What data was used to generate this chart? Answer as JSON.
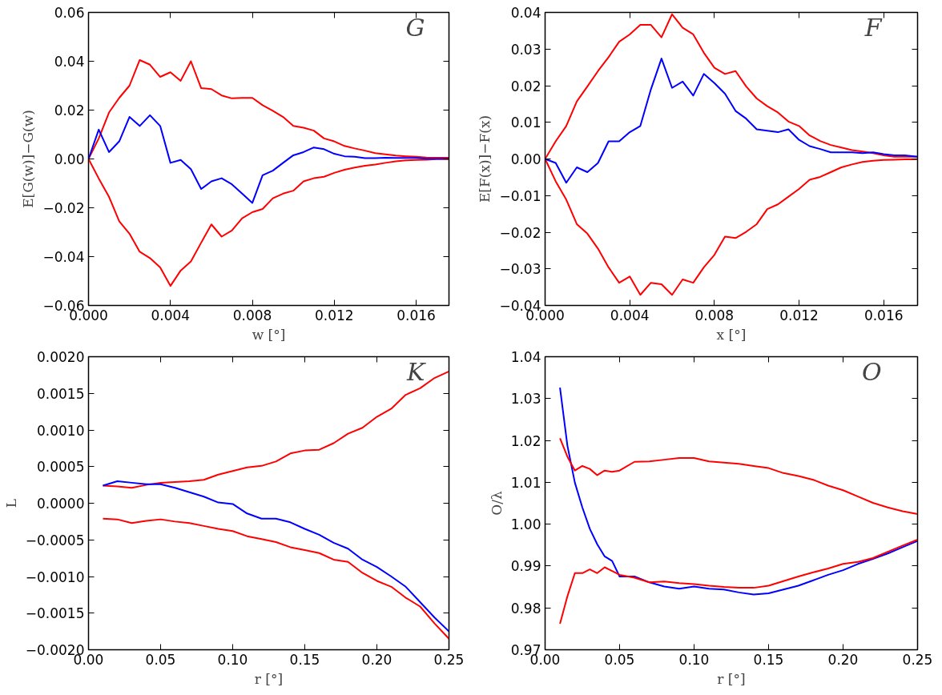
{
  "chart_data": [
    {
      "type": "line",
      "ylabel": "E[G(w)]−G(w)",
      "xlabel": "w [°]",
      "annotations": [
        "G"
      ],
      "line_style": "solid",
      "grid": false,
      "x": [
        0,
        0.0005,
        0.001,
        0.0015,
        0.002,
        0.0025,
        0.003,
        0.0035,
        0.004,
        0.0045,
        0.005,
        0.0055,
        0.006,
        0.0065,
        0.007,
        0.0075,
        0.008,
        0.0085,
        0.009,
        0.0095,
        0.01,
        0.0105,
        0.011,
        0.0115,
        0.012,
        0.0125,
        0.013,
        0.0135,
        0.014,
        0.0145,
        0.015,
        0.0155,
        0.016,
        0.0165,
        0.017,
        0.0176
      ],
      "xlim": [
        0,
        0.0176
      ],
      "xticks": [
        {
          "value": 0,
          "label": "0.000"
        },
        {
          "value": 0.004,
          "label": "0.004"
        },
        {
          "value": 0.008,
          "label": "0.008"
        },
        {
          "value": 0.012,
          "label": "0.012"
        },
        {
          "value": 0.016,
          "label": "0.016"
        }
      ],
      "ylim": [
        -0.06,
        0.06
      ],
      "yticks": [
        {
          "value": -0.06,
          "label": "−0.06"
        },
        {
          "value": -0.04,
          "label": "−0.04"
        },
        {
          "value": -0.02,
          "label": "−0.02"
        },
        {
          "value": 0,
          "label": "0.00"
        },
        {
          "value": 0.02,
          "label": "0.02"
        },
        {
          "value": 0.04,
          "label": "0.04"
        },
        {
          "value": 0.06,
          "label": "0.06"
        }
      ],
      "series": [
        {
          "color": "#ff0000",
          "values": [
            0,
            0.0084,
            0.019,
            0.025,
            0.03,
            0.0405,
            0.0386,
            0.0336,
            0.0355,
            0.032,
            0.04,
            0.029,
            0.0286,
            0.026,
            0.0248,
            0.025,
            0.025,
            0.022,
            0.0197,
            0.0172,
            0.0135,
            0.0128,
            0.0116,
            0.0084,
            0.0072,
            0.0053,
            0.0043,
            0.0034,
            0.0024,
            0.0019,
            0.0014,
            0.0011,
            0.0009,
            0.0006,
            0.0005,
            0.0005
          ]
        },
        {
          "color": "#ff0000",
          "values": [
            0,
            -0.008,
            -0.0155,
            -0.0255,
            -0.0306,
            -0.038,
            -0.0406,
            -0.0444,
            -0.052,
            -0.0457,
            -0.042,
            -0.0343,
            -0.0268,
            -0.0318,
            -0.0293,
            -0.0243,
            -0.0218,
            -0.0205,
            -0.0161,
            -0.0142,
            -0.013,
            -0.0092,
            -0.0079,
            -0.0073,
            -0.0057,
            -0.0044,
            -0.0035,
            -0.0028,
            -0.0023,
            -0.0016,
            -0.001,
            -0.0006,
            -0.0004,
            -0.0003,
            -0.0001,
            -0.0001
          ]
        },
        {
          "color": "#0000ff",
          "values": [
            0,
            0.012,
            0.0028,
            0.0072,
            0.0172,
            0.0135,
            0.0179,
            0.0135,
            -0.0016,
            -0.0004,
            -0.0042,
            -0.0123,
            -0.0092,
            -0.0079,
            -0.0104,
            -0.0142,
            -0.018,
            -0.0067,
            -0.0048,
            -0.0016,
            0.0015,
            0.0028,
            0.0047,
            0.004,
            0.0021,
            0.0011,
            0.0009,
            0.0003,
            0.0003,
            0.0005,
            0.0004,
            0.0004,
            0.0004,
            0.0001,
            0.0001,
            0.0001
          ]
        }
      ]
    },
    {
      "type": "line",
      "ylabel": "E[F(x)]−F(x)",
      "xlabel": "x [°]",
      "annotations": [
        "F"
      ],
      "line_style": "solid",
      "grid": false,
      "x": [
        0,
        0.0005,
        0.001,
        0.0015,
        0.002,
        0.0025,
        0.003,
        0.0035,
        0.004,
        0.0045,
        0.005,
        0.0055,
        0.006,
        0.0065,
        0.007,
        0.0075,
        0.008,
        0.0085,
        0.009,
        0.0095,
        0.01,
        0.0105,
        0.011,
        0.0115,
        0.012,
        0.0125,
        0.013,
        0.0135,
        0.014,
        0.0145,
        0.015,
        0.0155,
        0.016,
        0.0165,
        0.017,
        0.0176
      ],
      "xlim": [
        0,
        0.0176
      ],
      "xticks": [
        {
          "value": 0,
          "label": "0.000"
        },
        {
          "value": 0.004,
          "label": "0.004"
        },
        {
          "value": 0.008,
          "label": "0.008"
        },
        {
          "value": 0.012,
          "label": "0.012"
        },
        {
          "value": 0.016,
          "label": "0.016"
        }
      ],
      "ylim": [
        -0.04,
        0.04
      ],
      "yticks": [
        {
          "value": -0.04,
          "label": "−0.04"
        },
        {
          "value": -0.03,
          "label": "−0.03"
        },
        {
          "value": -0.02,
          "label": "−0.02"
        },
        {
          "value": -0.01,
          "label": "−0.01"
        },
        {
          "value": 0,
          "label": "0.00"
        },
        {
          "value": 0.01,
          "label": "0.01"
        },
        {
          "value": 0.02,
          "label": "0.02"
        },
        {
          "value": 0.03,
          "label": "0.03"
        },
        {
          "value": 0.04,
          "label": "0.04"
        }
      ],
      "series": [
        {
          "color": "#ff0000",
          "values": [
            0,
            0.0048,
            0.009,
            0.0157,
            0.0198,
            0.024,
            0.0278,
            0.032,
            0.034,
            0.0366,
            0.0366,
            0.0332,
            0.0395,
            0.0358,
            0.034,
            0.029,
            0.0249,
            0.0232,
            0.024,
            0.0198,
            0.0165,
            0.0144,
            0.0127,
            0.0102,
            0.009,
            0.0064,
            0.0049,
            0.0038,
            0.0031,
            0.0024,
            0.002,
            0.0016,
            0.001,
            0.0006,
            0.0006,
            0.0006
          ]
        },
        {
          "color": "#ff0000",
          "values": [
            0,
            -0.0061,
            -0.0111,
            -0.0178,
            -0.0204,
            -0.0245,
            -0.0296,
            -0.0338,
            -0.0321,
            -0.0371,
            -0.0338,
            -0.0342,
            -0.0371,
            -0.0329,
            -0.0338,
            -0.0296,
            -0.0262,
            -0.0212,
            -0.0216,
            -0.0199,
            -0.0178,
            -0.0137,
            -0.0124,
            -0.0103,
            -0.0082,
            -0.0057,
            -0.0049,
            -0.0036,
            -0.0023,
            -0.0015,
            -0.0008,
            -0.0005,
            -0.0003,
            -0.0002,
            -0.0001,
            -0.0001
          ]
        },
        {
          "color": "#0000ff",
          "values": [
            0,
            -0.0011,
            -0.0065,
            -0.0023,
            -0.0036,
            -0.0011,
            0.0048,
            0.0048,
            0.0073,
            0.009,
            0.019,
            0.0274,
            0.0194,
            0.0211,
            0.0173,
            0.0232,
            0.0207,
            0.0178,
            0.0131,
            0.011,
            0.0081,
            0.0077,
            0.0073,
            0.0081,
            0.0052,
            0.0035,
            0.0027,
            0.0018,
            0.0018,
            0.0018,
            0.0016,
            0.0018,
            0.0013,
            0.001,
            0.001,
            0.0006
          ]
        }
      ]
    },
    {
      "type": "line",
      "ylabel": "L",
      "xlabel": "r [°]",
      "annotations": [
        "K"
      ],
      "line_style": "solid",
      "grid": false,
      "x": [
        0.01,
        0.02,
        0.03,
        0.04,
        0.05,
        0.06,
        0.07,
        0.08,
        0.09,
        0.1,
        0.11,
        0.12,
        0.13,
        0.14,
        0.15,
        0.16,
        0.17,
        0.18,
        0.19,
        0.2,
        0.21,
        0.22,
        0.23,
        0.24,
        0.25
      ],
      "xlim": [
        0,
        0.25
      ],
      "xticks": [
        {
          "value": 0,
          "label": "0.00"
        },
        {
          "value": 0.05,
          "label": "0.05"
        },
        {
          "value": 0.1,
          "label": "0.10"
        },
        {
          "value": 0.15,
          "label": "0.15"
        },
        {
          "value": 0.2,
          "label": "0.20"
        },
        {
          "value": 0.25,
          "label": "0.25"
        }
      ],
      "ylim": [
        -0.002,
        0.002
      ],
      "yticks": [
        {
          "value": -0.002,
          "label": "−0.0020"
        },
        {
          "value": -0.0015,
          "label": "−0.0015"
        },
        {
          "value": -0.001,
          "label": "−0.0010"
        },
        {
          "value": -0.0005,
          "label": "−0.0005"
        },
        {
          "value": 0,
          "label": "0.0000"
        },
        {
          "value": 0.0005,
          "label": "0.0005"
        },
        {
          "value": 0.001,
          "label": "0.0010"
        },
        {
          "value": 0.0015,
          "label": "0.0015"
        },
        {
          "value": 0.002,
          "label": "0.0020"
        }
      ],
      "series": [
        {
          "color": "#ff0000",
          "values": [
            0.00024,
            0.00023,
            0.00021,
            0.00025,
            0.00028,
            0.00029,
            0.0003,
            0.00032,
            0.00039,
            0.00044,
            0.00049,
            0.00051,
            0.00057,
            0.00068,
            0.00072,
            0.00073,
            0.00082,
            0.00095,
            0.00103,
            0.00118,
            0.00129,
            0.00148,
            0.00157,
            0.00171,
            0.0018
          ]
        },
        {
          "color": "#0000ff",
          "values": [
            0.00024,
            0.0003,
            0.00028,
            0.00026,
            0.00026,
            0.00021,
            0.00015,
            9e-05,
            1e-05,
            -1e-05,
            -0.00014,
            -0.00021,
            -0.00021,
            -0.00026,
            -0.00035,
            -0.00043,
            -0.00054,
            -0.00062,
            -0.00077,
            -0.00087,
            -0.001,
            -0.00114,
            -0.00135,
            -0.00156,
            -0.00175
          ]
        },
        {
          "color": "#ff0000",
          "values": [
            -0.00021,
            -0.00022,
            -0.00027,
            -0.00024,
            -0.00022,
            -0.00025,
            -0.00027,
            -0.00031,
            -0.00035,
            -0.00038,
            -0.00045,
            -0.00049,
            -0.00053,
            -0.0006,
            -0.00064,
            -0.00068,
            -0.00077,
            -0.0008,
            -0.00095,
            -0.00106,
            -0.00114,
            -0.00129,
            -0.00141,
            -0.00164,
            -0.00185
          ]
        }
      ]
    },
    {
      "type": "line",
      "ylabel": "O/λ",
      "xlabel": "r [°]",
      "annotations": [
        "O"
      ],
      "line_style": "solid",
      "grid": false,
      "x": [
        0.01,
        0.015,
        0.02,
        0.025,
        0.03,
        0.035,
        0.04,
        0.045,
        0.05,
        0.06,
        0.07,
        0.08,
        0.09,
        0.1,
        0.11,
        0.12,
        0.13,
        0.14,
        0.15,
        0.16,
        0.17,
        0.18,
        0.19,
        0.2,
        0.21,
        0.22,
        0.23,
        0.24,
        0.25
      ],
      "xlim": [
        0,
        0.25
      ],
      "xticks": [
        {
          "value": 0,
          "label": "0.00"
        },
        {
          "value": 0.05,
          "label": "0.05"
        },
        {
          "value": 0.1,
          "label": "0.10"
        },
        {
          "value": 0.15,
          "label": "0.15"
        },
        {
          "value": 0.2,
          "label": "0.20"
        },
        {
          "value": 0.25,
          "label": "0.25"
        }
      ],
      "ylim": [
        0.97,
        1.04
      ],
      "yticks": [
        {
          "value": 0.97,
          "label": "0.97"
        },
        {
          "value": 0.98,
          "label": "0.98"
        },
        {
          "value": 0.99,
          "label": "0.99"
        },
        {
          "value": 1.0,
          "label": "1.00"
        },
        {
          "value": 1.01,
          "label": "1.01"
        },
        {
          "value": 1.02,
          "label": "1.02"
        },
        {
          "value": 1.03,
          "label": "1.03"
        },
        {
          "value": 1.04,
          "label": "1.04"
        }
      ],
      "series": [
        {
          "color": "#0000ff",
          "values": [
            1.0326,
            1.0187,
            1.0099,
            1.004,
            0.9989,
            0.9952,
            0.9923,
            0.9912,
            0.9875,
            0.9875,
            0.9861,
            0.9851,
            0.9846,
            0.9851,
            0.9846,
            0.9844,
            0.9837,
            0.9832,
            0.9835,
            0.9844,
            0.9853,
            0.9866,
            0.9879,
            0.989,
            0.9905,
            0.9917,
            0.993,
            0.9945,
            0.996
          ]
        },
        {
          "color": "#ff0000",
          "values": [
            1.0205,
            1.0161,
            1.0128,
            1.0139,
            1.0132,
            1.0117,
            1.0128,
            1.0125,
            1.0128,
            1.0149,
            1.015,
            1.0154,
            1.0158,
            1.0158,
            1.015,
            1.0147,
            1.0144,
            1.0139,
            1.0134,
            1.0122,
            1.0115,
            1.0106,
            1.0092,
            1.0081,
            1.0066,
            1.0051,
            1.004,
            1.0031,
            1.0024
          ]
        },
        {
          "color": "#ff0000",
          "values": [
            0.9762,
            0.9828,
            0.9883,
            0.9883,
            0.9892,
            0.9883,
            0.9897,
            0.9888,
            0.9879,
            0.9872,
            0.9861,
            0.9863,
            0.9859,
            0.9857,
            0.9853,
            0.985,
            0.9848,
            0.9848,
            0.9853,
            0.9864,
            0.9875,
            0.9885,
            0.9894,
            0.9905,
            0.991,
            0.9919,
            0.9934,
            0.9949,
            0.9963
          ]
        }
      ]
    }
  ]
}
